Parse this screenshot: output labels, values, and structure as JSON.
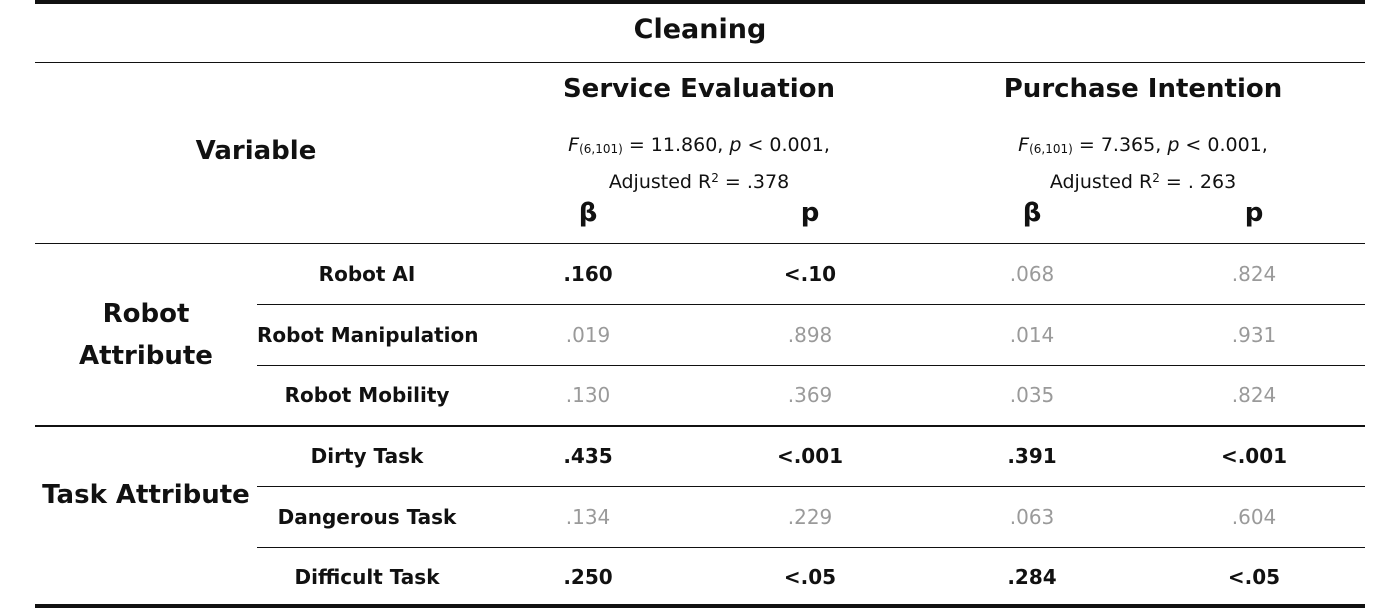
{
  "title": "Cleaning",
  "variable_header": "Variable",
  "groups": [
    {
      "name": "Service Evaluation",
      "f_label": "F",
      "f_df": "(6,101)",
      "f_rest": " = 11.860, ",
      "p_label": "p",
      "p_rest": " < 0.001,",
      "r2_prefix": "Adjusted R",
      "r2_sup": "2",
      "r2_rest": " = .378"
    },
    {
      "name": "Purchase Intention",
      "f_label": "F",
      "f_df": "(6,101)",
      "f_rest": " = 7.365, ",
      "p_label": "p",
      "p_rest": " < 0.001,",
      "r2_prefix": "Adjusted R",
      "r2_sup": "2",
      "r2_rest": " = . 263"
    }
  ],
  "column_headers": [
    "β",
    "p",
    "β",
    "p"
  ],
  "row_groups": [
    "Robot Attribute",
    "Task Attribute"
  ],
  "rows": [
    {
      "label": "Robot AI",
      "values": [
        ".160",
        "<.10",
        ".068",
        ".824"
      ],
      "significant": [
        true,
        true,
        false,
        false
      ]
    },
    {
      "label": "Robot Manipulation",
      "values": [
        ".019",
        ".898",
        ".014",
        ".931"
      ],
      "significant": [
        false,
        false,
        false,
        false
      ]
    },
    {
      "label": "Robot Mobility",
      "values": [
        ".130",
        ".369",
        ".035",
        ".824"
      ],
      "significant": [
        false,
        false,
        false,
        false
      ]
    },
    {
      "label": "Dirty Task",
      "values": [
        ".435",
        "<.001",
        ".391",
        "<.001"
      ],
      "significant": [
        true,
        true,
        true,
        true
      ]
    },
    {
      "label": "Dangerous Task",
      "values": [
        ".134",
        ".229",
        ".063",
        ".604"
      ],
      "significant": [
        false,
        false,
        false,
        false
      ]
    },
    {
      "label": "Difficult Task",
      "values": [
        ".250",
        "<.05",
        ".284",
        "<.05"
      ],
      "significant": [
        true,
        true,
        true,
        true
      ]
    }
  ],
  "colors": {
    "significant": "#111111",
    "not_significant": "#9a9a9a",
    "rule": "#111111"
  }
}
